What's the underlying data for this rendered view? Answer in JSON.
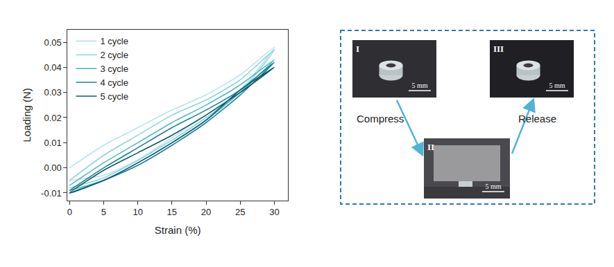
{
  "chart_data": {
    "type": "line",
    "x_label": "Strain (%)",
    "y_label": "Loading (N)",
    "xlim": [
      -0.3,
      32
    ],
    "xticks": [
      0,
      5,
      10,
      15,
      20,
      25,
      30
    ],
    "ylim": [
      -0.013,
      0.055
    ],
    "yticks": [
      {
        "value": -0.01,
        "label": "-0.01"
      },
      {
        "value": 0,
        "label": "0.00"
      },
      {
        "value": 0.01,
        "label": "0.01"
      },
      {
        "value": 0.02,
        "label": "0.02"
      },
      {
        "value": 0.03,
        "label": "0.03"
      },
      {
        "value": 0.04,
        "label": "0.04"
      },
      {
        "value": 0.05,
        "label": "0.05"
      }
    ],
    "grid": false,
    "legend": "upper left",
    "series": [
      {
        "name": "1 cycle",
        "color": "#b9e4ec",
        "x": [
          0,
          5,
          10,
          15,
          20,
          25,
          30,
          25,
          20,
          15,
          10,
          5,
          0
        ],
        "values": [
          0.0,
          0.009,
          0.016,
          0.023,
          0.029,
          0.037,
          0.048,
          0.031,
          0.021,
          0.012,
          0.003,
          -0.003,
          -0.005
        ]
      },
      {
        "name": "2 cycle",
        "color": "#8ed3df",
        "x": [
          0,
          5,
          10,
          15,
          20,
          25,
          30,
          25,
          20,
          15,
          10,
          5,
          0
        ],
        "values": [
          -0.005,
          0.005,
          0.013,
          0.021,
          0.027,
          0.035,
          0.047,
          0.03,
          0.02,
          0.011,
          0.003,
          -0.004,
          -0.008
        ]
      },
      {
        "name": "3 cycle",
        "color": "#55b9ca",
        "x": [
          0,
          5,
          10,
          15,
          20,
          25,
          30,
          25,
          20,
          15,
          10,
          5,
          0
        ],
        "values": [
          -0.007,
          0.002,
          0.01,
          0.018,
          0.025,
          0.033,
          0.043,
          0.03,
          0.019,
          0.01,
          0.002,
          -0.005,
          -0.009
        ]
      },
      {
        "name": "4 cycle",
        "color": "#1e8199",
        "x": [
          0,
          5,
          10,
          15,
          20,
          25,
          30,
          25,
          20,
          15,
          10,
          5,
          0
        ],
        "values": [
          -0.009,
          0.0,
          0.008,
          0.016,
          0.023,
          0.031,
          0.042,
          0.029,
          0.018,
          0.009,
          0.001,
          -0.005,
          -0.01
        ]
      },
      {
        "name": "5 cycle",
        "color": "#0d5a6c",
        "x": [
          0,
          5,
          10,
          15,
          20,
          25,
          30,
          25,
          20,
          15,
          10,
          5,
          0
        ],
        "values": [
          -0.01,
          -0.001,
          0.006,
          0.013,
          0.021,
          0.03,
          0.04,
          0.031,
          0.019,
          0.01,
          0.002,
          -0.005,
          -0.01
        ]
      }
    ]
  },
  "panel": {
    "photos": [
      {
        "label": "I",
        "scale_bar": "5 mm"
      },
      {
        "label": "II",
        "scale_bar": "5 mm"
      },
      {
        "label": "III",
        "scale_bar": "5 mm"
      }
    ],
    "arrows": [
      {
        "label": "Compress",
        "from": "I",
        "to": "II"
      },
      {
        "label": "Release",
        "from": "II",
        "to": "III"
      }
    ]
  }
}
